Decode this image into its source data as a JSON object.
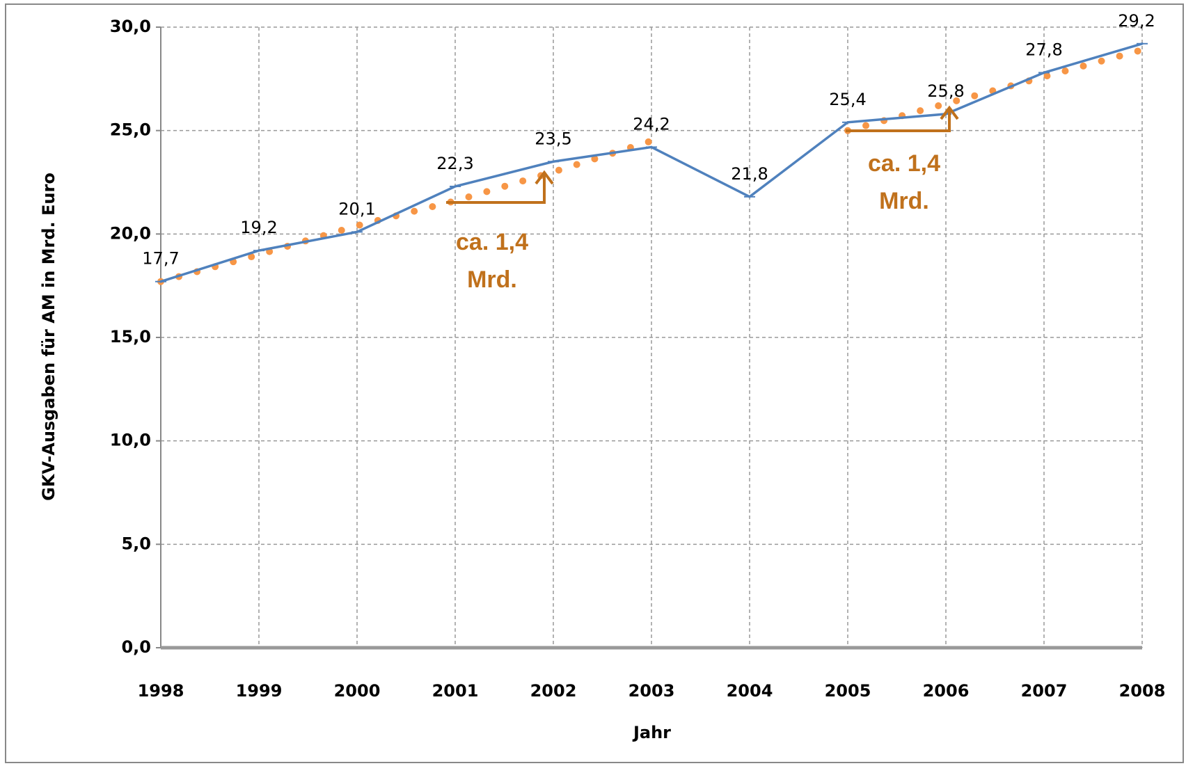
{
  "chart_data": {
    "type": "line",
    "x_label": "Jahr",
    "y_label": "GKV-Ausgaben für AM in Mrd. Euro",
    "categories": [
      "1998",
      "1999",
      "2000",
      "2001",
      "2002",
      "2003",
      "2004",
      "2005",
      "2006",
      "2007",
      "2008"
    ],
    "series": [
      {
        "color": "#4f81bd",
        "values": [
          17.7,
          19.2,
          20.1,
          22.3,
          23.5,
          24.2,
          21.8,
          25.4,
          25.8,
          27.8,
          29.2
        ],
        "value_labels": [
          "17,7",
          "19,2",
          "20,1",
          "22,3",
          "23,5",
          "24,2",
          "21,8",
          "25,4",
          "25,8",
          "27,8",
          "29,2"
        ]
      },
      {
        "color": "#f79646",
        "style": "dotted",
        "values": [
          17.7,
          19.0,
          20.4,
          21.6,
          23.0,
          24.5,
          null,
          25.0,
          26.3,
          27.6,
          28.9
        ]
      }
    ],
    "ylim": [
      0,
      30
    ],
    "yticks": [
      {
        "value": 0,
        "label": "0,0"
      },
      {
        "value": 5,
        "label": "5,0"
      },
      {
        "value": 10,
        "label": "10,0"
      },
      {
        "value": 15,
        "label": "15,0"
      },
      {
        "value": 20,
        "label": "20,0"
      },
      {
        "value": 25,
        "label": "25,0"
      },
      {
        "value": 30,
        "label": "30,0"
      }
    ],
    "grid": true,
    "annotations": [
      {
        "lines": [
          "ca. 1,4",
          "Mrd."
        ],
        "color": "#c0711c"
      },
      {
        "lines": [
          "ca. 1,4",
          "Mrd."
        ],
        "color": "#c0711c"
      }
    ]
  }
}
